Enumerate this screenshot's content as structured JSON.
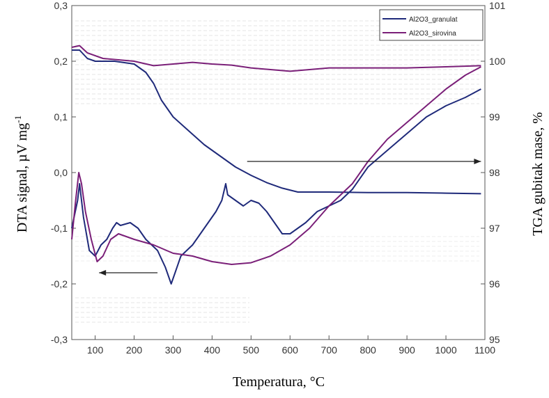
{
  "chart_data": {
    "type": "line",
    "title": "",
    "xlabel": "Temperatura, °C",
    "ylabel_left": "DTA signal, µV mg",
    "ylabel_left_sup": "-1",
    "ylabel_right": "TGA gubitak mase, %",
    "xlim": [
      40,
      1100
    ],
    "ylim_left": [
      -0.3,
      0.3
    ],
    "ylim_right": [
      95,
      101
    ],
    "x_ticks": [
      100,
      200,
      300,
      400,
      500,
      600,
      700,
      800,
      900,
      1000,
      1100
    ],
    "y_left_ticks": [
      "-0,3",
      "-0,2",
      "-0,1",
      "0,0",
      "0,1",
      "0,2",
      "0,3"
    ],
    "y_left_tick_values": [
      -0.3,
      -0.2,
      -0.1,
      0.0,
      0.1,
      0.2,
      0.3
    ],
    "y_right_ticks": [
      95,
      96,
      97,
      98,
      99,
      100,
      101
    ],
    "legend_position": "top-right",
    "grid": false,
    "series": [
      {
        "name": "Al2O3_granulat",
        "kind": "TGA",
        "axis": "right",
        "color": "#1f2a7a",
        "points": [
          [
            40,
            100.2
          ],
          [
            60,
            100.2
          ],
          [
            80,
            100.05
          ],
          [
            100,
            100.0
          ],
          [
            150,
            100.0
          ],
          [
            200,
            99.95
          ],
          [
            230,
            99.8
          ],
          [
            250,
            99.6
          ],
          [
            270,
            99.3
          ],
          [
            300,
            99.0
          ],
          [
            340,
            98.75
          ],
          [
            380,
            98.5
          ],
          [
            420,
            98.3
          ],
          [
            460,
            98.1
          ],
          [
            500,
            97.95
          ],
          [
            540,
            97.82
          ],
          [
            580,
            97.72
          ],
          [
            620,
            97.65
          ],
          [
            700,
            97.65
          ],
          [
            800,
            97.64
          ],
          [
            900,
            97.64
          ],
          [
            1000,
            97.63
          ],
          [
            1090,
            97.62
          ]
        ]
      },
      {
        "name": "Al2O3_sirovina",
        "kind": "TGA",
        "axis": "right",
        "color": "#7a1f78",
        "points": [
          [
            40,
            100.25
          ],
          [
            60,
            100.28
          ],
          [
            80,
            100.15
          ],
          [
            120,
            100.05
          ],
          [
            200,
            100.0
          ],
          [
            250,
            99.92
          ],
          [
            300,
            99.95
          ],
          [
            350,
            99.98
          ],
          [
            400,
            99.95
          ],
          [
            450,
            99.93
          ],
          [
            500,
            99.88
          ],
          [
            550,
            99.85
          ],
          [
            600,
            99.82
          ],
          [
            650,
            99.85
          ],
          [
            700,
            99.88
          ],
          [
            800,
            99.88
          ],
          [
            900,
            99.88
          ],
          [
            1000,
            99.9
          ],
          [
            1090,
            99.92
          ]
        ]
      },
      {
        "name": "Al2O3_granulat",
        "kind": "DTA",
        "axis": "left",
        "color": "#1f2a7a",
        "points": [
          [
            40,
            -0.1
          ],
          [
            55,
            -0.05
          ],
          [
            60,
            -0.02
          ],
          [
            70,
            -0.08
          ],
          [
            85,
            -0.14
          ],
          [
            100,
            -0.15
          ],
          [
            115,
            -0.13
          ],
          [
            130,
            -0.12
          ],
          [
            145,
            -0.1
          ],
          [
            155,
            -0.09
          ],
          [
            165,
            -0.095
          ],
          [
            190,
            -0.09
          ],
          [
            210,
            -0.1
          ],
          [
            230,
            -0.12
          ],
          [
            260,
            -0.14
          ],
          [
            280,
            -0.17
          ],
          [
            295,
            -0.2
          ],
          [
            305,
            -0.18
          ],
          [
            320,
            -0.15
          ],
          [
            350,
            -0.13
          ],
          [
            380,
            -0.1
          ],
          [
            410,
            -0.07
          ],
          [
            425,
            -0.05
          ],
          [
            435,
            -0.02
          ],
          [
            440,
            -0.04
          ],
          [
            460,
            -0.05
          ],
          [
            480,
            -0.06
          ],
          [
            500,
            -0.05
          ],
          [
            520,
            -0.055
          ],
          [
            540,
            -0.07
          ],
          [
            560,
            -0.09
          ],
          [
            580,
            -0.11
          ],
          [
            600,
            -0.11
          ],
          [
            620,
            -0.1
          ],
          [
            640,
            -0.09
          ],
          [
            670,
            -0.07
          ],
          [
            700,
            -0.06
          ],
          [
            730,
            -0.05
          ],
          [
            760,
            -0.03
          ],
          [
            800,
            0.01
          ],
          [
            850,
            0.04
          ],
          [
            900,
            0.07
          ],
          [
            950,
            0.1
          ],
          [
            1000,
            0.12
          ],
          [
            1050,
            0.135
          ],
          [
            1090,
            0.15
          ]
        ]
      },
      {
        "name": "Al2O3_sirovina",
        "kind": "DTA",
        "axis": "left",
        "color": "#7a1f78",
        "points": [
          [
            40,
            -0.12
          ],
          [
            50,
            -0.05
          ],
          [
            58,
            0.0
          ],
          [
            65,
            -0.02
          ],
          [
            75,
            -0.07
          ],
          [
            90,
            -0.12
          ],
          [
            105,
            -0.16
          ],
          [
            120,
            -0.15
          ],
          [
            140,
            -0.12
          ],
          [
            160,
            -0.11
          ],
          [
            200,
            -0.12
          ],
          [
            250,
            -0.13
          ],
          [
            300,
            -0.145
          ],
          [
            350,
            -0.15
          ],
          [
            400,
            -0.16
          ],
          [
            450,
            -0.165
          ],
          [
            500,
            -0.162
          ],
          [
            550,
            -0.15
          ],
          [
            600,
            -0.13
          ],
          [
            650,
            -0.1
          ],
          [
            700,
            -0.06
          ],
          [
            730,
            -0.04
          ],
          [
            760,
            -0.02
          ],
          [
            800,
            0.02
          ],
          [
            850,
            0.06
          ],
          [
            900,
            0.09
          ],
          [
            950,
            0.12
          ],
          [
            1000,
            0.15
          ],
          [
            1050,
            0.175
          ],
          [
            1090,
            0.19
          ]
        ]
      }
    ],
    "arrows": [
      {
        "direction": "left",
        "axis": "left",
        "x_from": 260,
        "x_to": 110,
        "y": -0.18
      },
      {
        "direction": "right",
        "axis": "right",
        "x_from": 490,
        "x_to": 1090,
        "y": 98.2
      }
    ]
  }
}
